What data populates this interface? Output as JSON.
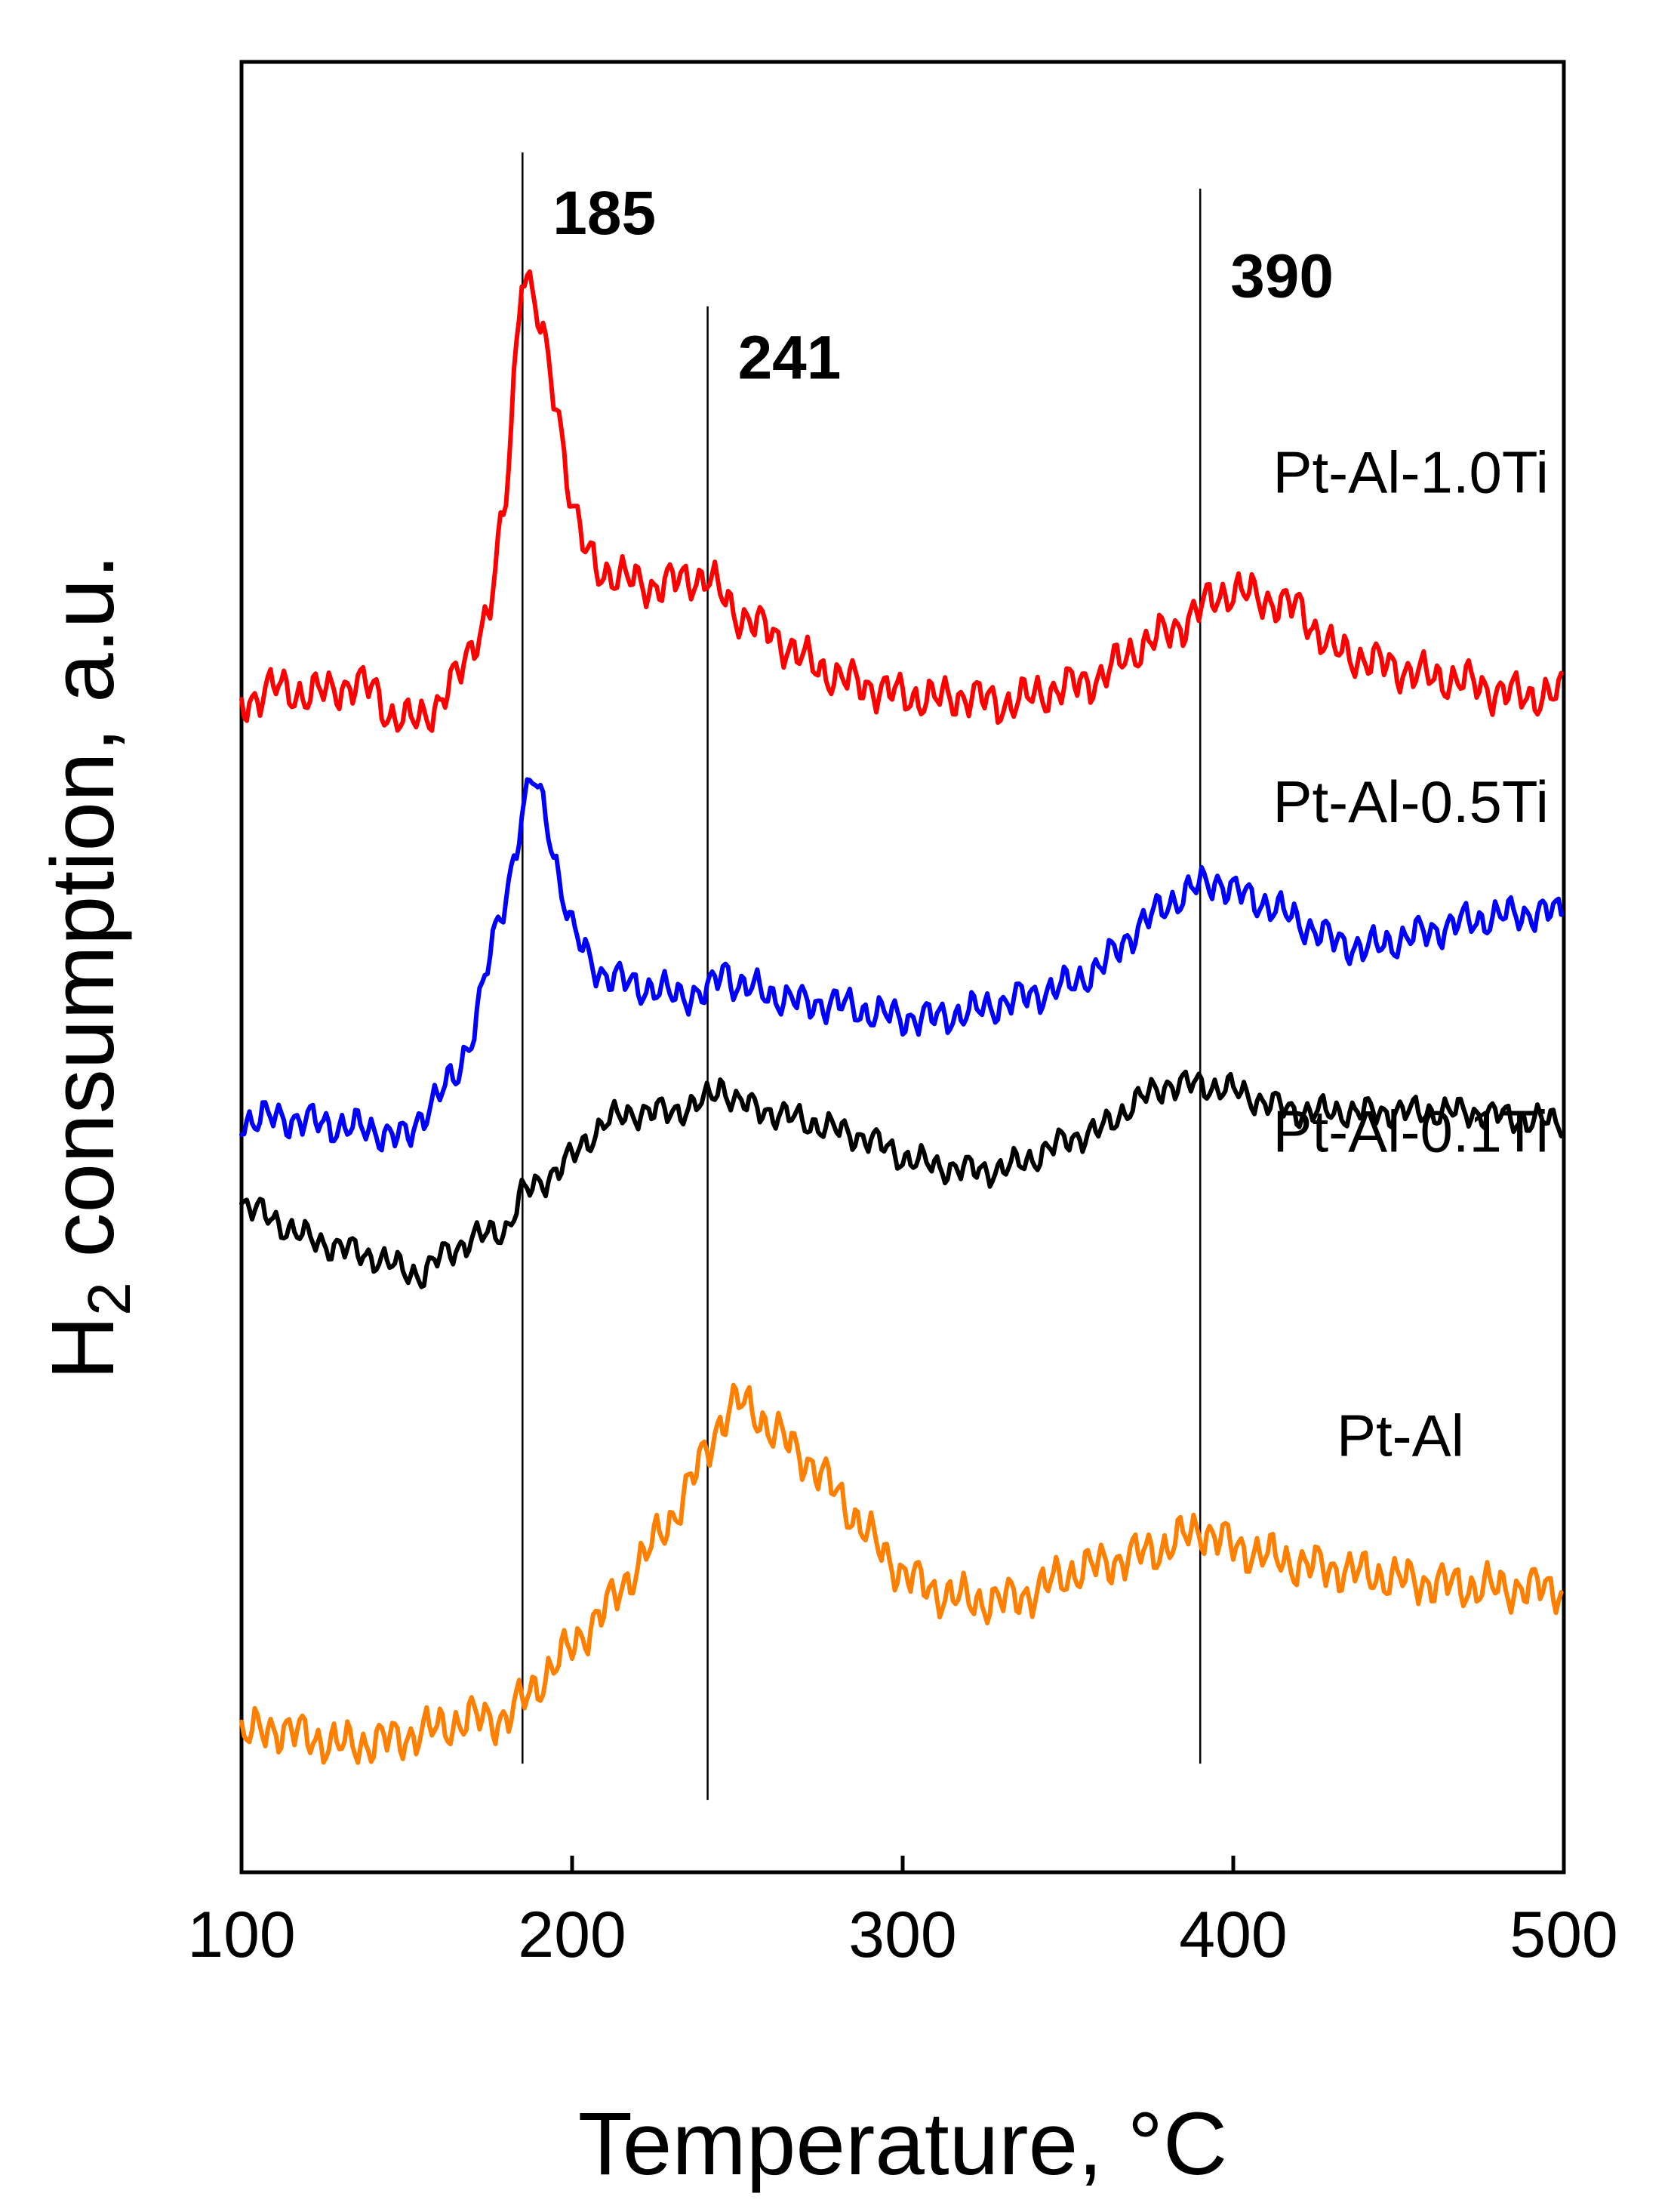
{
  "chart_data": {
    "type": "line",
    "title": "",
    "xlabel": "Temperature, °C",
    "ylabel_main": "H",
    "ylabel_sub": "2",
    "ylabel_rest": " consumption, a.u.",
    "xlim": [
      100,
      500
    ],
    "xticks": [
      "100",
      "200",
      "300",
      "400",
      "500"
    ],
    "ylim": [
      0,
      100
    ],
    "y_ticks_shown": false,
    "reference_lines": [
      {
        "x": 185,
        "label": "185",
        "y_top": 95,
        "y_bottom": 6,
        "label_y": 90.5
      },
      {
        "x": 241,
        "label": "241",
        "y_top": 86.5,
        "y_bottom": 4,
        "label_y": 82.5
      },
      {
        "x": 390,
        "label": "390",
        "y_top": 93,
        "y_bottom": 6,
        "label_y": 87
      }
    ],
    "series": [
      {
        "name": "Pt-Al-1.0Ti",
        "color": "#ff0000",
        "label_y": 76.2,
        "x": [
          100,
          110,
          120,
          130,
          140,
          145,
          150,
          160,
          165,
          170,
          175,
          180,
          183,
          185,
          188,
          192,
          196,
          200,
          204,
          208,
          215,
          225,
          235,
          241,
          250,
          260,
          270,
          280,
          290,
          300,
          310,
          320,
          330,
          340,
          350,
          360,
          370,
          380,
          385,
          390,
          395,
          400,
          410,
          420,
          430,
          440,
          450,
          460,
          470,
          480,
          490,
          500
        ],
        "y": [
          64.5,
          65.5,
          65.0,
          65.5,
          65.5,
          63.8,
          63.5,
          64.5,
          66.0,
          68.0,
          69.5,
          76.0,
          84.0,
          89.0,
          87.0,
          84.0,
          80.5,
          75.5,
          73.0,
          72.0,
          71.5,
          71.0,
          71.5,
          71.5,
          69.5,
          68.5,
          67.0,
          66.0,
          65.5,
          65.0,
          64.8,
          65.0,
          64.5,
          65.0,
          65.5,
          66.0,
          67.5,
          68.5,
          69.0,
          69.8,
          70.5,
          70.8,
          70.3,
          69.8,
          67.5,
          67.0,
          66.5,
          66.0,
          65.8,
          65.2,
          65.0,
          65.0
        ],
        "noise_amplitude": 1.4
      },
      {
        "name": "Pt-Al-0.5Ti",
        "color": "#0000ff",
        "label_y": 58.0,
        "x": [
          100,
          110,
          120,
          130,
          140,
          150,
          155,
          160,
          165,
          170,
          175,
          180,
          185,
          188,
          192,
          196,
          200,
          205,
          210,
          220,
          230,
          241,
          246,
          250,
          260,
          270,
          280,
          290,
          300,
          310,
          320,
          330,
          340,
          350,
          360,
          370,
          380,
          390,
          395,
          400,
          410,
          420,
          430,
          440,
          450,
          460,
          470,
          480,
          490,
          500
        ],
        "y": [
          41.5,
          41.7,
          41.5,
          41.2,
          41.0,
          40.5,
          42.0,
          43.0,
          44.0,
          46.5,
          50.5,
          54.0,
          58.5,
          60.5,
          58.5,
          55.0,
          52.0,
          50.5,
          49.5,
          49.0,
          48.5,
          48.5,
          50.0,
          49.0,
          48.5,
          48.0,
          48.0,
          47.5,
          47.2,
          47.2,
          47.5,
          48.0,
          48.5,
          49.0,
          50.0,
          52.0,
          53.5,
          54.5,
          54.8,
          54.2,
          53.5,
          52.5,
          51.5,
          51.0,
          51.5,
          52.0,
          52.5,
          52.8,
          53.0,
          53.0
        ],
        "noise_amplitude": 1.2
      },
      {
        "name": "Pt-Al-0.1Ti",
        "color": "#000000",
        "label_y": 39.8,
        "x": [
          100,
          110,
          120,
          130,
          140,
          150,
          155,
          160,
          170,
          180,
          185,
          190,
          200,
          210,
          220,
          230,
          240,
          245,
          250,
          260,
          270,
          280,
          290,
          300,
          310,
          320,
          330,
          340,
          350,
          360,
          370,
          380,
          390,
          400,
          410,
          420,
          430,
          440,
          450,
          460,
          470,
          480,
          490,
          500
        ],
        "y": [
          37.0,
          36.0,
          35.0,
          34.5,
          34.0,
          33.2,
          33.0,
          34.0,
          35.0,
          35.5,
          37.5,
          38.0,
          39.5,
          41.5,
          42.0,
          42.0,
          42.5,
          43.5,
          42.5,
          42.0,
          41.5,
          41.0,
          40.5,
          39.5,
          39.0,
          38.8,
          38.8,
          39.5,
          40.5,
          41.0,
          42.5,
          43.5,
          43.5,
          43.2,
          42.5,
          42.0,
          42.0,
          42.0,
          42.0,
          42.0,
          42.0,
          41.8,
          41.5,
          41.5
        ],
        "noise_amplitude": 1.0
      },
      {
        "name": "Pt-Al",
        "color": "#ff8000",
        "label_y": 23.0,
        "x": [
          100,
          110,
          120,
          130,
          140,
          150,
          160,
          170,
          180,
          185,
          190,
          200,
          210,
          220,
          230,
          240,
          245,
          250,
          255,
          260,
          270,
          280,
          290,
          300,
          310,
          320,
          330,
          340,
          350,
          360,
          370,
          380,
          385,
          390,
          395,
          400,
          410,
          420,
          430,
          440,
          450,
          460,
          470,
          480,
          490,
          500
        ],
        "y": [
          7.5,
          8.0,
          7.5,
          7.0,
          7.2,
          7.5,
          8.0,
          8.5,
          8.5,
          9.5,
          10.5,
          12.5,
          14.5,
          17.0,
          19.5,
          23.0,
          25.0,
          26.0,
          25.5,
          24.5,
          23.0,
          21.0,
          18.5,
          16.5,
          15.5,
          15.0,
          15.0,
          15.5,
          16.5,
          17.0,
          17.5,
          18.0,
          18.5,
          19.0,
          18.5,
          18.0,
          17.5,
          17.0,
          16.8,
          16.5,
          16.2,
          16.0,
          15.8,
          15.7,
          15.7,
          15.7
        ],
        "noise_amplitude": 1.5
      }
    ]
  }
}
